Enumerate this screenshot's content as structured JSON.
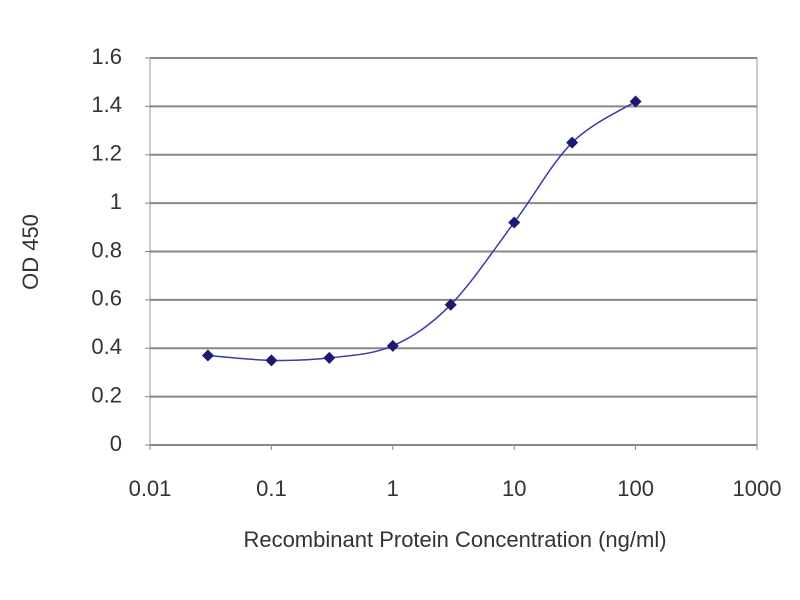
{
  "chart_data": {
    "type": "scatter",
    "x_label": "Recombinant Protein Concentration (ng/ml)",
    "y_label": "OD 450",
    "x": [
      0.03,
      0.1,
      0.3,
      1,
      3,
      10,
      30,
      100
    ],
    "values": [
      0.37,
      0.35,
      0.36,
      0.41,
      0.58,
      0.92,
      1.25,
      1.42
    ],
    "color": "#1a1a6e",
    "line_color": "#3a3aa8",
    "fit_line": true,
    "xscale": "log",
    "xlim": [
      0.01,
      1000
    ],
    "xticks": [
      0.01,
      0.1,
      1,
      10,
      100,
      1000
    ],
    "ylim": [
      0,
      1.6
    ],
    "yticks": [
      0,
      0.2,
      0.4,
      0.6,
      0.8,
      1,
      1.2,
      1.4,
      1.6
    ],
    "grid": true
  }
}
